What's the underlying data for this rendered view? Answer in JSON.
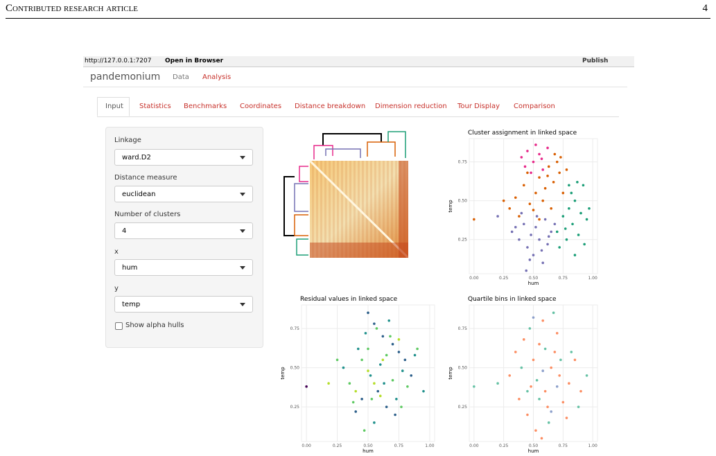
{
  "header": {
    "running_title": "Contributed research article",
    "page_number": "4"
  },
  "browser": {
    "url": "http://127.0.0.1:7207",
    "open": "Open in Browser",
    "publish": "Publish"
  },
  "app": {
    "brand": "pandemonium",
    "nav": [
      "Data",
      "Analysis"
    ],
    "tabs": [
      "Input",
      "Statistics",
      "Benchmarks",
      "Coordinates",
      "Distance breakdown",
      "Dimension reduction",
      "Tour Display",
      "Comparison"
    ]
  },
  "form": {
    "fields": [
      {
        "label": "Linkage",
        "value": "ward.D2"
      },
      {
        "label": "Distance measure",
        "value": "euclidean"
      },
      {
        "label": "Number of clusters",
        "value": "4"
      },
      {
        "label": "x",
        "value": "hum"
      },
      {
        "label": "y",
        "value": "temp"
      }
    ],
    "checkbox": "Show alpha hulls"
  },
  "chart_data": [
    {
      "type": "scatter",
      "title": "Cluster assignment in linked space",
      "x_label": "hum",
      "y_label": "temp",
      "xlim": [
        -0.04,
        1.04
      ],
      "ylim": [
        0.03,
        0.9
      ],
      "xticks": [
        {
          "value": 0,
          "label": "0.00"
        },
        {
          "value": 0.25,
          "label": "0.25"
        },
        {
          "value": 0.5,
          "label": "0.50"
        },
        {
          "value": 0.75,
          "label": "0.75"
        },
        {
          "value": 1,
          "label": "1.00"
        }
      ],
      "yticks": [
        {
          "value": 0.25,
          "label": "0.25"
        },
        {
          "value": 0.5,
          "label": "0.50"
        },
        {
          "value": 0.75,
          "label": "0.75"
        }
      ],
      "series": [
        {
          "color": "#e7298a",
          "x": [
            0.4,
            0.45,
            0.5,
            0.55,
            0.58,
            0.48,
            0.62,
            0.52,
            0.43,
            0.57
          ],
          "y": [
            0.78,
            0.82,
            0.75,
            0.8,
            0.7,
            0.68,
            0.84,
            0.86,
            0.72,
            0.77
          ]
        },
        {
          "color": "#d95f02",
          "x": [
            0.0,
            0.3,
            0.35,
            0.42,
            0.47,
            0.52,
            0.55,
            0.6,
            0.63,
            0.67,
            0.7,
            0.72,
            0.75,
            0.78,
            0.38,
            0.45,
            0.5,
            0.58,
            0.65,
            0.68,
            0.25,
            0.55,
            0.62,
            0.73
          ],
          "y": [
            0.38,
            0.45,
            0.52,
            0.6,
            0.48,
            0.55,
            0.65,
            0.58,
            0.72,
            0.62,
            0.75,
            0.68,
            0.55,
            0.7,
            0.4,
            0.68,
            0.44,
            0.5,
            0.45,
            0.8,
            0.5,
            0.38,
            0.66,
            0.78
          ]
        },
        {
          "color": "#7570b3",
          "x": [
            0.2,
            0.32,
            0.38,
            0.42,
            0.45,
            0.48,
            0.5,
            0.52,
            0.55,
            0.58,
            0.6,
            0.62,
            0.65,
            0.68,
            0.4,
            0.47,
            0.53,
            0.57,
            0.44,
            0.63,
            0.35
          ],
          "y": [
            0.4,
            0.3,
            0.25,
            0.35,
            0.2,
            0.28,
            0.15,
            0.33,
            0.25,
            0.1,
            0.38,
            0.22,
            0.3,
            0.35,
            0.42,
            0.12,
            0.4,
            0.18,
            0.05,
            0.27,
            0.33
          ]
        },
        {
          "color": "#1b9e77",
          "x": [
            0.7,
            0.75,
            0.78,
            0.8,
            0.83,
            0.85,
            0.88,
            0.9,
            0.92,
            0.95,
            0.72,
            0.82,
            0.87,
            0.93,
            0.77,
            0.97,
            0.85,
            0.8
          ],
          "y": [
            0.3,
            0.4,
            0.25,
            0.45,
            0.35,
            0.5,
            0.28,
            0.42,
            0.6,
            0.38,
            0.2,
            0.55,
            0.62,
            0.22,
            0.32,
            0.45,
            0.15,
            0.6
          ]
        }
      ]
    },
    {
      "type": "scatter",
      "title": "Residual values in linked space",
      "x_label": "hum",
      "y_label": "temp",
      "xlim": [
        -0.04,
        1.04
      ],
      "ylim": [
        0.03,
        0.9
      ],
      "xticks": [
        {
          "value": 0,
          "label": "0.00"
        },
        {
          "value": 0.25,
          "label": "0.25"
        },
        {
          "value": 0.5,
          "label": "0.50"
        },
        {
          "value": 0.75,
          "label": "0.75"
        },
        {
          "value": 1,
          "label": "1.00"
        }
      ],
      "yticks": [
        {
          "value": 0.25,
          "label": "0.25"
        },
        {
          "value": 0.5,
          "label": "0.50"
        },
        {
          "value": 0.75,
          "label": "0.75"
        }
      ],
      "series": [
        {
          "color": "#2c5f8a",
          "x": [
            0.5,
            0.55,
            0.62,
            0.7,
            0.75,
            0.8,
            0.45,
            0.65,
            0.85,
            0.58,
            0.72,
            0.4
          ],
          "y": [
            0.85,
            0.78,
            0.7,
            0.65,
            0.6,
            0.55,
            0.3,
            0.25,
            0.45,
            0.35,
            0.2,
            0.22
          ]
        },
        {
          "color": "#21918c",
          "x": [
            0.3,
            0.42,
            0.48,
            0.52,
            0.6,
            0.67,
            0.78,
            0.88,
            0.55,
            0.63,
            0.73,
            0.95
          ],
          "y": [
            0.5,
            0.62,
            0.72,
            0.45,
            0.52,
            0.8,
            0.48,
            0.58,
            0.15,
            0.4,
            0.3,
            0.35
          ]
        },
        {
          "color": "#5ec962",
          "x": [
            0.25,
            0.35,
            0.45,
            0.5,
            0.57,
            0.65,
            0.7,
            0.82,
            0.9,
            0.38,
            0.53,
            0.77,
            0.47,
            0.68
          ],
          "y": [
            0.55,
            0.4,
            0.55,
            0.62,
            0.75,
            0.58,
            0.42,
            0.38,
            0.62,
            0.28,
            0.3,
            0.25,
            0.1,
            0.7
          ]
        },
        {
          "color": "#b5de2b",
          "x": [
            0.18,
            0.4,
            0.5,
            0.55,
            0.6,
            0.75,
            0.62
          ],
          "y": [
            0.4,
            0.35,
            0.48,
            0.4,
            0.32,
            0.68,
            0.55
          ]
        },
        {
          "color": "#440154",
          "x": [
            0.0
          ],
          "y": [
            0.38
          ]
        }
      ]
    },
    {
      "type": "scatter",
      "title": "Quartile bins in linked space",
      "x_label": "hum",
      "y_label": "temp",
      "xlim": [
        -0.04,
        1.04
      ],
      "ylim": [
        0.03,
        0.9
      ],
      "xticks": [
        {
          "value": 0,
          "label": "0.00"
        },
        {
          "value": 0.25,
          "label": "0.25"
        },
        {
          "value": 0.5,
          "label": "0.50"
        },
        {
          "value": 0.75,
          "label": "0.75"
        },
        {
          "value": 1,
          "label": "1.00"
        }
      ],
      "yticks": [
        {
          "value": 0.25,
          "label": "0.25"
        },
        {
          "value": 0.5,
          "label": "0.50"
        },
        {
          "value": 0.75,
          "label": "0.75"
        }
      ],
      "series": [
        {
          "color": "#fc8d62",
          "x": [
            0.3,
            0.38,
            0.45,
            0.5,
            0.55,
            0.6,
            0.65,
            0.7,
            0.75,
            0.8,
            0.85,
            0.42,
            0.52,
            0.58,
            0.62,
            0.68,
            0.72,
            0.48,
            0.35,
            0.9,
            0.78,
            0.57
          ],
          "y": [
            0.45,
            0.3,
            0.2,
            0.55,
            0.65,
            0.35,
            0.5,
            0.72,
            0.28,
            0.4,
            0.55,
            0.68,
            0.1,
            0.8,
            0.25,
            0.6,
            0.45,
            0.38,
            0.6,
            0.35,
            0.18,
            0.05
          ]
        },
        {
          "color": "#66c2a5",
          "x": [
            0.0,
            0.2,
            0.4,
            0.47,
            0.53,
            0.6,
            0.67,
            0.73,
            0.82,
            0.88,
            0.55,
            0.63,
            0.45,
            0.95
          ],
          "y": [
            0.38,
            0.4,
            0.5,
            0.75,
            0.42,
            0.62,
            0.85,
            0.55,
            0.6,
            0.25,
            0.3,
            0.15,
            0.35,
            0.45
          ]
        },
        {
          "color": "#8da0cb",
          "x": [
            0.5,
            0.58,
            0.7,
            0.65
          ],
          "y": [
            0.82,
            0.48,
            0.38,
            0.22
          ]
        }
      ]
    }
  ]
}
